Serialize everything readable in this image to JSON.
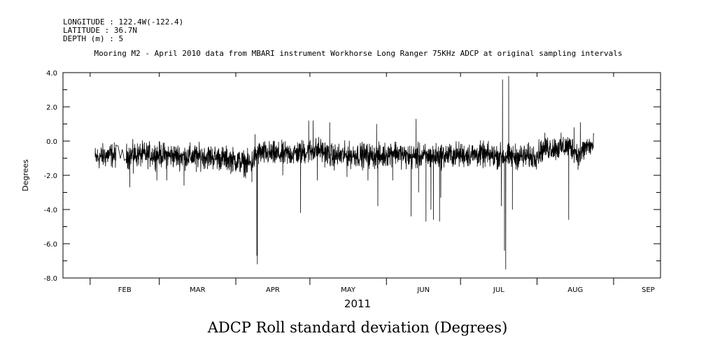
{
  "header": {
    "longitude": "LONGITUDE : 122.4W(-122.4)",
    "latitude": "LATITUDE : 36.7N",
    "depth": "DEPTH (m) : 5",
    "title": "Mooring M2 - April 2010 data from MBARI instrument Workhorse Long Ranger 75KHz ADCP at original sampling intervals"
  },
  "caption": "ADCP Roll standard deviation (Degrees)",
  "chart_data": {
    "type": "line",
    "ylabel": "Degrees",
    "xlabel": "2011",
    "ylim": [
      -8.0,
      4.0
    ],
    "y_ticks": [
      4.0,
      2.0,
      0.0,
      -2.0,
      -4.0,
      -6.0,
      -8.0
    ],
    "y_tick_labels": [
      "4.0",
      "2.0",
      "0.0",
      "-2.0",
      "-4.0",
      "-6.0",
      "-8.0"
    ],
    "y_minor_step": 1.0,
    "x_axis": "day of year 2011",
    "xlim": [
      21,
      263
    ],
    "x_month_starts": [
      32,
      60,
      91,
      121,
      152,
      182,
      213,
      244
    ],
    "x_tick_labels": [
      "FEB",
      "MAR",
      "APR",
      "MAY",
      "JUN",
      "JUL",
      "AUG",
      "SEP"
    ],
    "grid": false,
    "series": [
      {
        "baseline": [
          [
            34.0,
            -1.0
          ],
          [
            40.0,
            -0.8
          ],
          [
            46.0,
            -0.9
          ],
          [
            50.0,
            -0.8
          ],
          [
            60.0,
            -0.8
          ],
          [
            70.0,
            -0.9
          ],
          [
            80.0,
            -0.9
          ],
          [
            90.0,
            -1.1
          ],
          [
            95.0,
            -1.3
          ],
          [
            97.0,
            -1.3
          ],
          [
            100.0,
            -0.7
          ],
          [
            110.0,
            -0.8
          ],
          [
            120.0,
            -0.6
          ],
          [
            125.0,
            -0.5
          ],
          [
            130.0,
            -0.9
          ],
          [
            140.0,
            -0.8
          ],
          [
            150.0,
            -0.9
          ],
          [
            155.0,
            -0.6
          ],
          [
            160.0,
            -0.9
          ],
          [
            170.0,
            -0.9
          ],
          [
            180.0,
            -0.8
          ],
          [
            190.0,
            -0.8
          ],
          [
            200.0,
            -0.9
          ],
          [
            208.0,
            -0.9
          ],
          [
            212.0,
            -0.9
          ],
          [
            216.0,
            -0.4
          ],
          [
            222.0,
            -0.4
          ],
          [
            226.0,
            -0.3
          ],
          [
            228.0,
            -0.5
          ],
          [
            230.0,
            -0.9
          ],
          [
            233.0,
            -0.3
          ],
          [
            236.0,
            -0.3
          ]
        ],
        "noise_amplitude": 0.35,
        "spikes": [
          [
            48.0,
            -2.7
          ],
          [
            49.5,
            -1.9
          ],
          [
            59.0,
            -2.3
          ],
          [
            63.0,
            -2.3
          ],
          [
            70.0,
            -2.6
          ],
          [
            75.0,
            -1.8
          ],
          [
            97.5,
            -2.4
          ],
          [
            98.8,
            0.4
          ],
          [
            99.5,
            -6.7
          ],
          [
            99.7,
            -7.2
          ],
          [
            110.0,
            -2.0
          ],
          [
            117.2,
            -4.2
          ],
          [
            120.5,
            1.2
          ],
          [
            122.3,
            1.2
          ],
          [
            124.0,
            -2.3
          ],
          [
            129.0,
            1.1
          ],
          [
            136.0,
            -2.1
          ],
          [
            144.5,
            -2.3
          ],
          [
            148.5,
            -3.8
          ],
          [
            148.0,
            1.0
          ],
          [
            154.5,
            -2.3
          ],
          [
            162.0,
            -4.4
          ],
          [
            164.0,
            1.3
          ],
          [
            165.0,
            -3.0
          ],
          [
            168.0,
            -4.7
          ],
          [
            170.0,
            -4.0
          ],
          [
            171.0,
            -4.6
          ],
          [
            173.5,
            -4.7
          ],
          [
            174.0,
            -3.3
          ],
          [
            198.5,
            -3.8
          ],
          [
            199.0,
            3.6
          ],
          [
            199.8,
            -6.4
          ],
          [
            200.3,
            -7.5
          ],
          [
            201.5,
            3.8
          ],
          [
            203.0,
            -4.0
          ],
          [
            225.8,
            -4.6
          ],
          [
            228.0,
            0.8
          ],
          [
            230.5,
            1.1
          ]
        ]
      }
    ]
  }
}
